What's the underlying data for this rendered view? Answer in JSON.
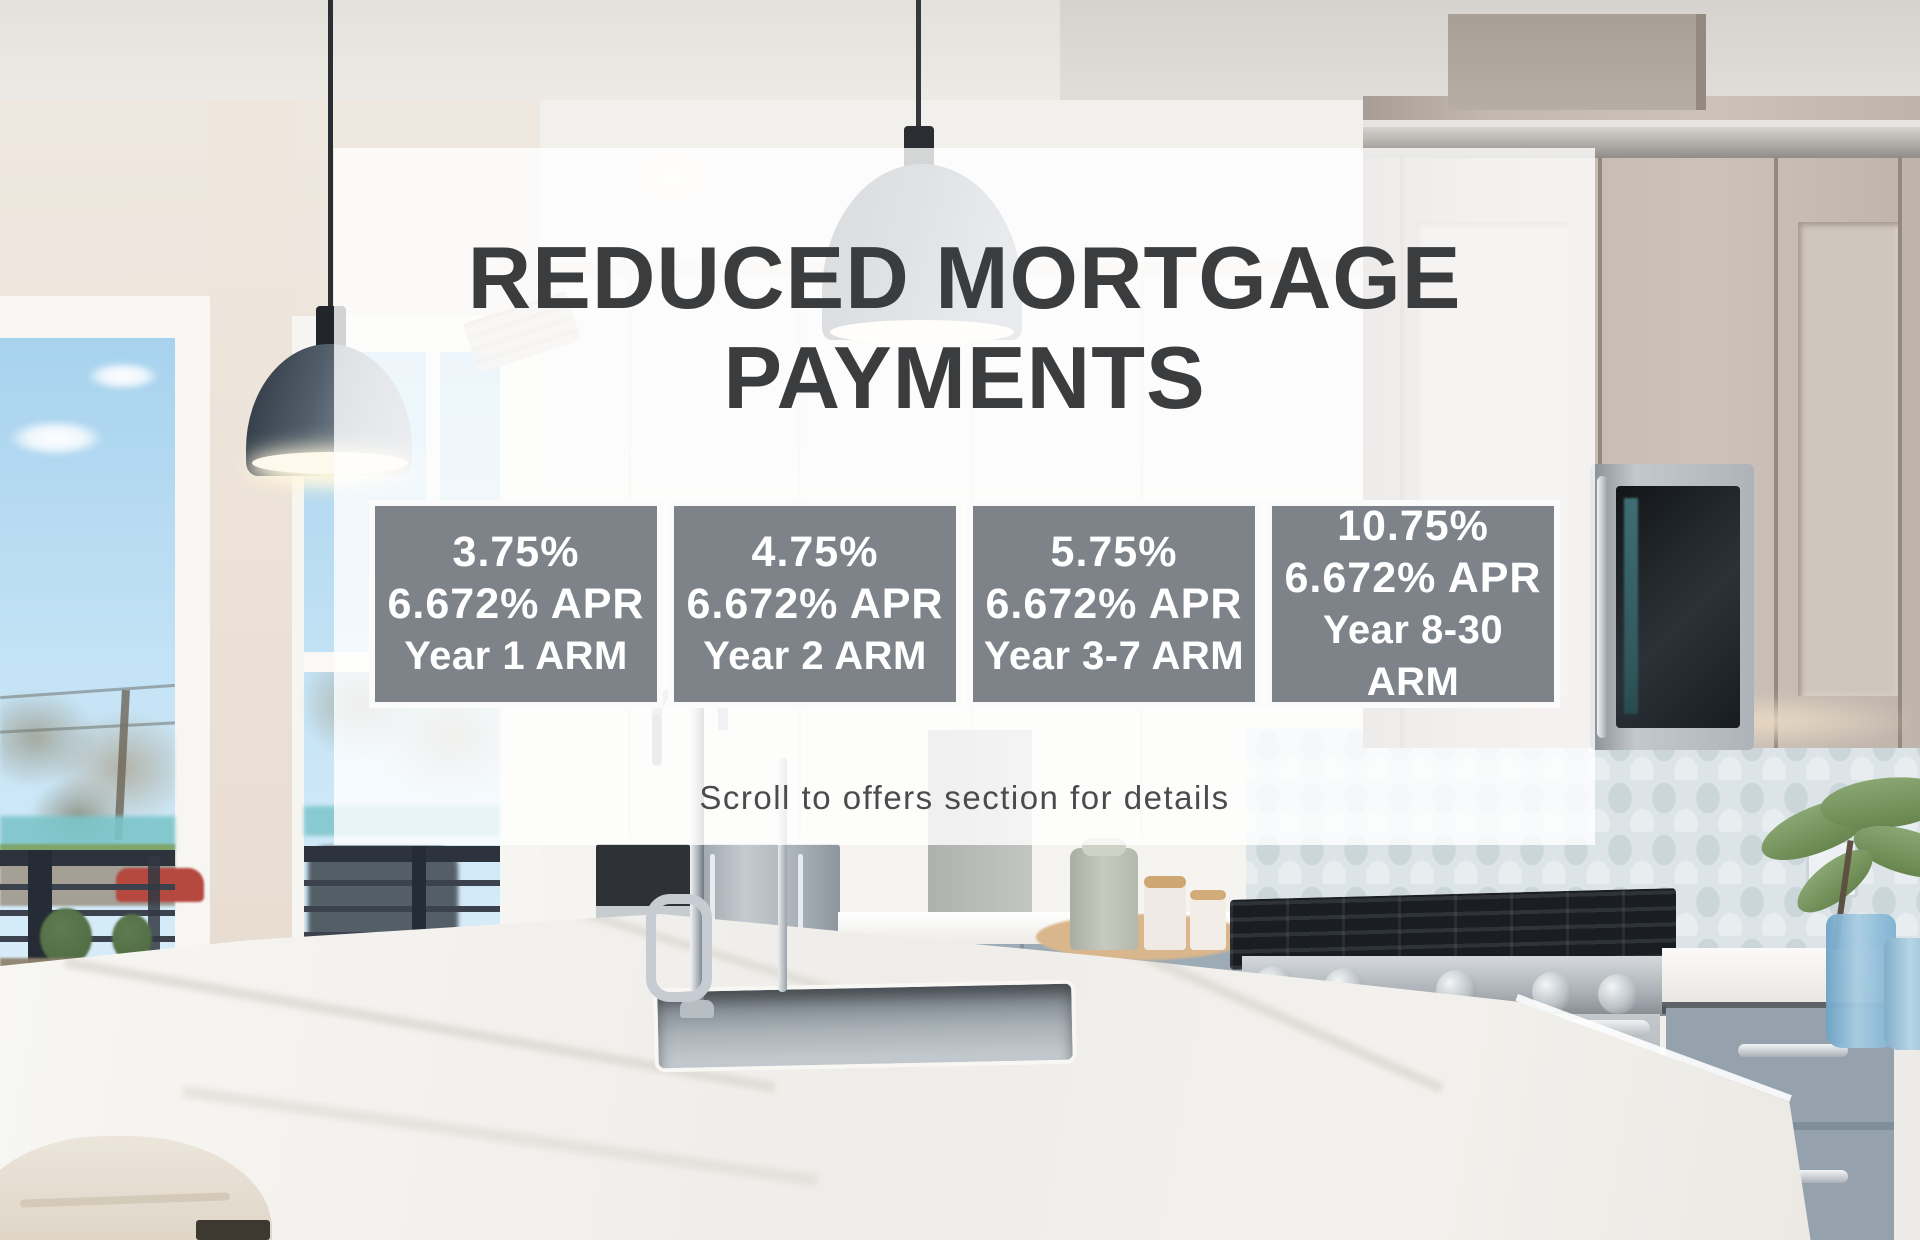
{
  "hero": {
    "title_lines": [
      "REDUCED MORTGAGE",
      "PAYMENTS"
    ],
    "offers": [
      {
        "rate": "3.75%",
        "apr": "6.672% APR",
        "term": "Year 1 ARM"
      },
      {
        "rate": "4.75%",
        "apr": "6.672% APR",
        "term": "Year 2 ARM"
      },
      {
        "rate": "5.75%",
        "apr": "6.672% APR",
        "term": "Year 3-7 ARM"
      },
      {
        "rate": "10.75%",
        "apr": "6.672% APR",
        "term": "Year 8-30 ARM"
      }
    ],
    "footer_note": "Scroll to offers section for details",
    "colors": {
      "title_text": "#3b3c3e",
      "offer_box_bg": "#7e838a",
      "offer_box_text": "#ffffff",
      "footer_text": "#4b4b4b",
      "overlay_bg": "rgba(255,255,255,0.80)"
    }
  }
}
